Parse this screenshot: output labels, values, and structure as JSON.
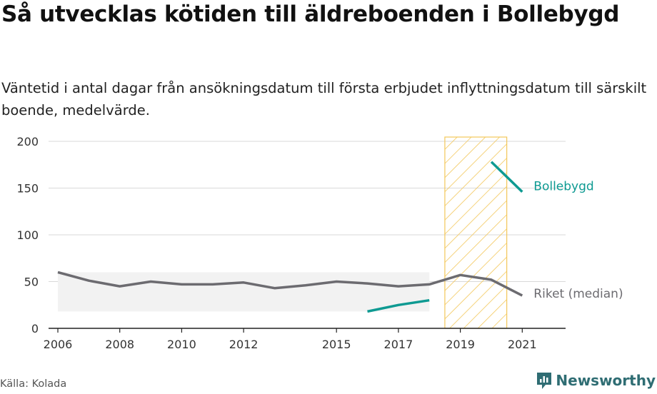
{
  "title": "Så utvecklas kötiden till äldreboenden i Bollebygd",
  "subtitle": "Väntetid i antal dagar från ansökningsdatum till första erbjudet inflyttningsdatum till särskilt boende, medelvärde.",
  "source": "Källa: Kolada",
  "brand": "Newsworthy",
  "colors": {
    "bollebygd": "#0e9a92",
    "riket": "#6c6b70",
    "highlight_stroke": "#f3c75a",
    "band": "#f2f2f2"
  },
  "chart_data": {
    "type": "line",
    "ylim": [
      0,
      200
    ],
    "yticks": [
      0,
      50,
      100,
      150,
      200
    ],
    "xlim": [
      2005.7,
      2022.4
    ],
    "xticks": [
      2006,
      2008,
      2010,
      2012,
      2015,
      2017,
      2019,
      2021
    ],
    "highlight_range": [
      2018.5,
      2020.5
    ],
    "band": {
      "x": [
        2006,
        2018
      ],
      "y": [
        18,
        60
      ]
    },
    "series": [
      {
        "name": "Bollebygd",
        "segments": [
          [
            [
              2016,
              18
            ],
            [
              2017,
              25
            ],
            [
              2018,
              30
            ]
          ],
          [
            [
              2020,
              178
            ],
            [
              2021,
              146
            ]
          ]
        ]
      },
      {
        "name": "Riket (median)",
        "segments": [
          [
            [
              2006,
              60
            ],
            [
              2007,
              51
            ],
            [
              2008,
              45
            ],
            [
              2009,
              50
            ],
            [
              2010,
              47
            ],
            [
              2011,
              47
            ],
            [
              2012,
              49
            ],
            [
              2013,
              43
            ],
            [
              2014,
              46
            ],
            [
              2015,
              50
            ],
            [
              2016,
              48
            ],
            [
              2017,
              45
            ],
            [
              2018,
              47
            ],
            [
              2019,
              57
            ],
            [
              2020,
              52
            ],
            [
              2021,
              35
            ]
          ]
        ]
      }
    ]
  }
}
